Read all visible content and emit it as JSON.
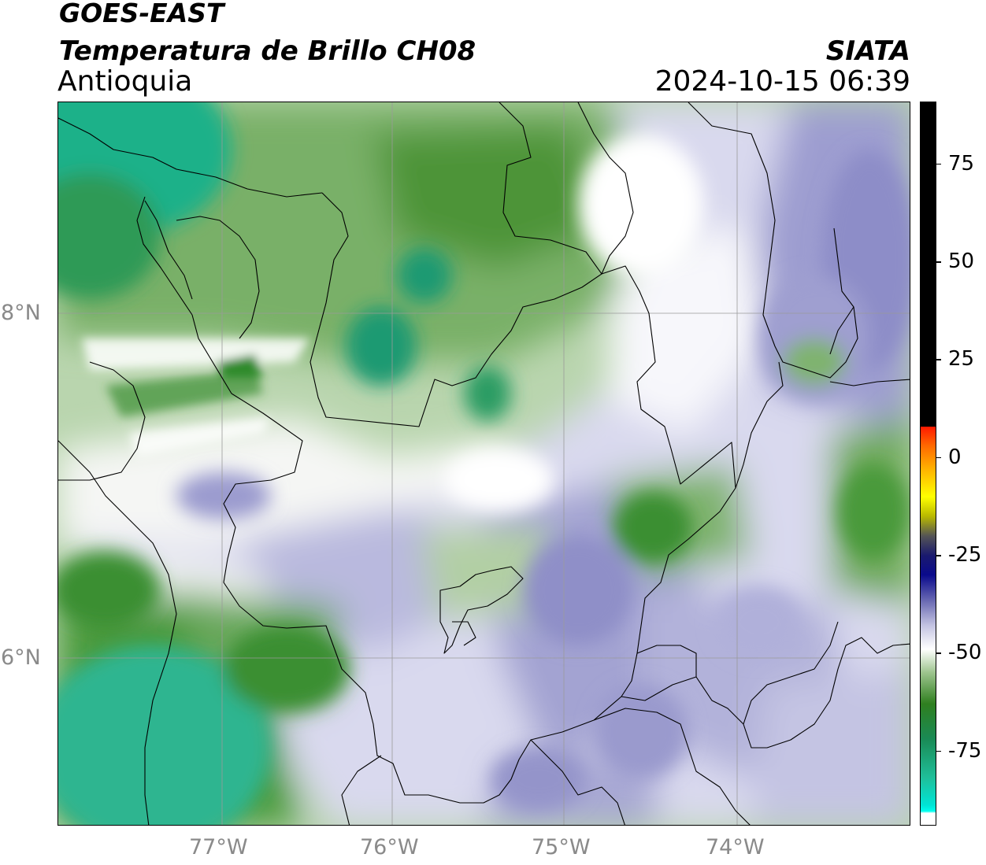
{
  "header": {
    "satellite": "GOES-EAST",
    "product": "Temperatura de Brillo CH08",
    "region": "Antioquia",
    "org": "SIATA",
    "datetime": "2024-10-15 06:39"
  },
  "map": {
    "lon_range": [
      -77.95,
      -73.05
    ],
    "lat_range": [
      5.05,
      9.25
    ],
    "lon_ticks": [
      {
        "value": -77,
        "label": "77°W"
      },
      {
        "value": -76,
        "label": "76°W"
      },
      {
        "value": -75,
        "label": "75°W"
      },
      {
        "value": -74,
        "label": "74°W"
      }
    ],
    "lat_ticks": [
      {
        "value": 8,
        "label": "8°N"
      },
      {
        "value": 6,
        "label": "6°N"
      }
    ],
    "gridline_color": "#9a9a9a",
    "border_color": "#000000"
  },
  "colorbar": {
    "range": [
      -94,
      91
    ],
    "tick_labels": [
      {
        "value": 75,
        "label": "75"
      },
      {
        "value": 50,
        "label": "50"
      },
      {
        "value": 25,
        "label": "25"
      },
      {
        "value": 0,
        "label": "0"
      },
      {
        "value": -25,
        "label": "-25"
      },
      {
        "value": -50,
        "label": "-50"
      },
      {
        "value": -75,
        "label": "-75"
      }
    ],
    "stops": [
      {
        "value": 91,
        "color": "#000000"
      },
      {
        "value": 8,
        "color": "#000000"
      },
      {
        "value": 7.9,
        "color": "#ff1a00"
      },
      {
        "value": 3,
        "color": "#ff6a00"
      },
      {
        "value": -3,
        "color": "#ffb300"
      },
      {
        "value": -10,
        "color": "#ffff00"
      },
      {
        "value": -15,
        "color": "#b8b800"
      },
      {
        "value": -20,
        "color": "#555555"
      },
      {
        "value": -25,
        "color": "#1a1a6e"
      },
      {
        "value": -30,
        "color": "#0a0a8c"
      },
      {
        "value": -37,
        "color": "#6f6fb5"
      },
      {
        "value": -43,
        "color": "#c4c4e2"
      },
      {
        "value": -49,
        "color": "#ffffff"
      },
      {
        "value": -55,
        "color": "#9dc48e"
      },
      {
        "value": -63,
        "color": "#2f7f1f"
      },
      {
        "value": -72,
        "color": "#1a8a55"
      },
      {
        "value": -82,
        "color": "#1fbf9a"
      },
      {
        "value": -89,
        "color": "#00e5d6"
      },
      {
        "value": -90.5,
        "color": "#00ffee"
      },
      {
        "value": -91,
        "color": "#ffffff"
      },
      {
        "value": -94,
        "color": "#ffffff"
      }
    ]
  },
  "palette": {
    "deep_teal": "#2cb890",
    "dark_green": "#3a8a2c",
    "mid_green": "#6aa85a",
    "light_green": "#b7d3ae",
    "white": "#ffffff",
    "light_lavender": "#d8d8ec",
    "lavender": "#a9a9d4",
    "purple": "#8585c2"
  }
}
